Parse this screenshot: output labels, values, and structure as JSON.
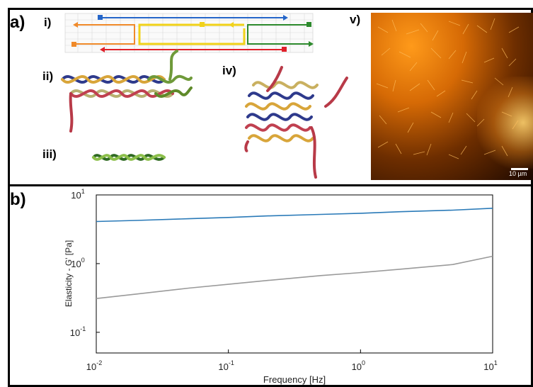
{
  "panel_a": {
    "letter": "a)",
    "sub_labels": {
      "i": "i)",
      "ii": "ii)",
      "iii": "iii)",
      "iv": "iv)",
      "v": "v)"
    }
  },
  "microscopy": {
    "scale_bar": "10 µm"
  },
  "panel_b": {
    "letter": "b)"
  },
  "chart_data": {
    "type": "line",
    "xscale": "log",
    "yscale": "log",
    "xlabel": "Frequency [Hz]",
    "ylabel": "Elasticity - G' [Pa]",
    "xlim": [
      0.01,
      10
    ],
    "ylim": [
      0.05,
      10
    ],
    "x_ticks": [
      {
        "value": 0.01,
        "base": "10",
        "exp": "-2"
      },
      {
        "value": 0.1,
        "base": "10",
        "exp": "-1"
      },
      {
        "value": 1,
        "base": "10",
        "exp": "0"
      },
      {
        "value": 10,
        "base": "10",
        "exp": "1"
      }
    ],
    "y_ticks": [
      {
        "value": 0.1,
        "base": "10",
        "exp": "-1"
      },
      {
        "value": 1,
        "base": "10",
        "exp": "0"
      },
      {
        "value": 10,
        "base": "10",
        "exp": "1"
      }
    ],
    "series": [
      {
        "color": "#2a7ab8",
        "points": [
          [
            0.01,
            4.1
          ],
          [
            0.02,
            4.25
          ],
          [
            0.05,
            4.5
          ],
          [
            0.1,
            4.7
          ],
          [
            0.2,
            4.95
          ],
          [
            0.5,
            5.2
          ],
          [
            1,
            5.4
          ],
          [
            2,
            5.7
          ],
          [
            5,
            6.0
          ],
          [
            10,
            6.4
          ]
        ]
      },
      {
        "color": "#9a9a9a",
        "points": [
          [
            0.01,
            0.31
          ],
          [
            0.02,
            0.36
          ],
          [
            0.05,
            0.44
          ],
          [
            0.1,
            0.5
          ],
          [
            0.2,
            0.57
          ],
          [
            0.5,
            0.67
          ],
          [
            1,
            0.74
          ],
          [
            2,
            0.83
          ],
          [
            5,
            0.97
          ],
          [
            10,
            1.28
          ]
        ]
      }
    ]
  }
}
